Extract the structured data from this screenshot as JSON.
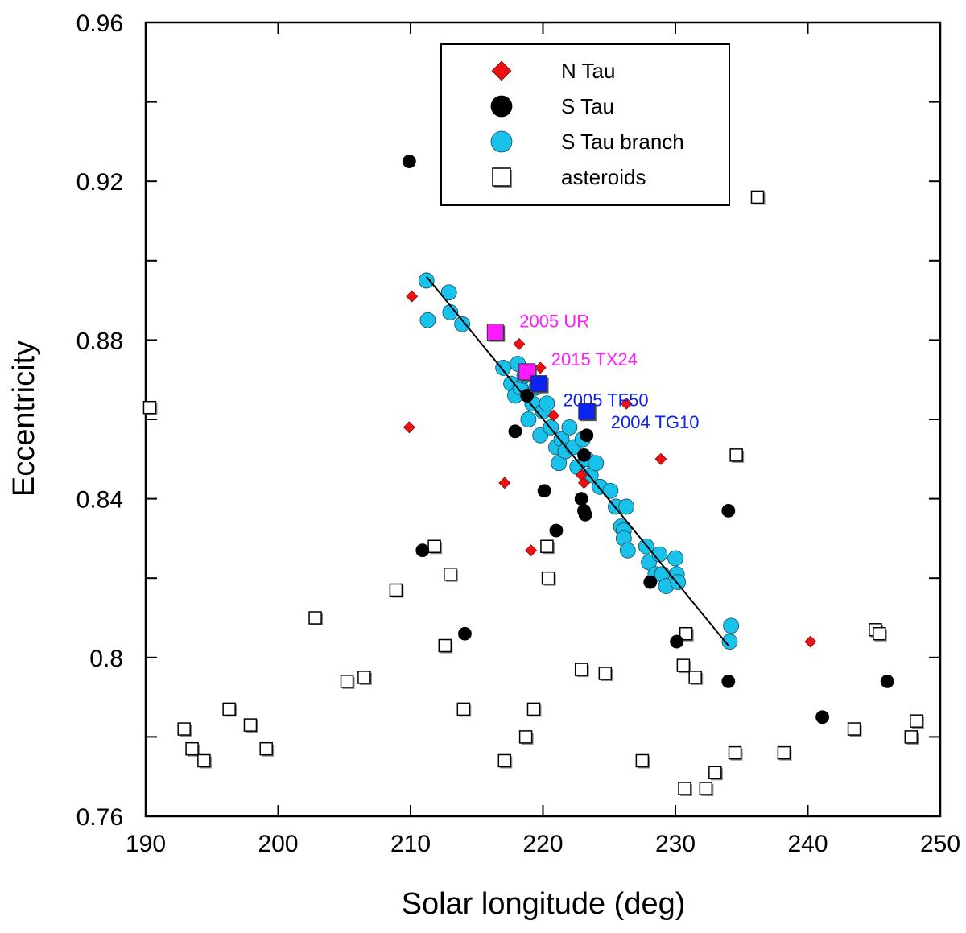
{
  "chart_data": {
    "type": "scatter",
    "xlabel": "Solar longitude (deg)",
    "ylabel": "Eccentricity",
    "xlim": [
      190,
      250
    ],
    "ylim": [
      0.76,
      0.96
    ],
    "x_major_ticks": [
      190,
      200,
      210,
      220,
      230,
      240,
      250
    ],
    "x_tick_labels": [
      "190",
      "200",
      "210",
      "220",
      "230",
      "240",
      "250"
    ],
    "y_major_ticks": [
      0.76,
      0.8,
      0.84,
      0.88,
      0.92,
      0.96
    ],
    "y_tick_labels": [
      "0.76",
      "0.8",
      "0.84",
      "0.88",
      "0.92",
      "0.96"
    ],
    "y_minor_ticks": [
      0.78,
      0.82,
      0.86,
      0.9,
      0.94
    ],
    "legend_position": "top-center",
    "legend": [
      {
        "label": "N Tau",
        "marker": "diamond",
        "color": "#ee1111"
      },
      {
        "label": "S Tau",
        "marker": "circle",
        "color": "#000000"
      },
      {
        "label": "S Tau branch",
        "marker": "circle",
        "color": "#18c2ea"
      },
      {
        "label": "asteroids",
        "marker": "square-open",
        "color": "#000000"
      }
    ],
    "series": [
      {
        "name": "N Tau",
        "marker": "diamond",
        "color": "#ee1111",
        "points": [
          [
            210.1,
            0.891
          ],
          [
            209.9,
            0.858
          ],
          [
            217.1,
            0.844
          ],
          [
            219.1,
            0.827
          ],
          [
            218.2,
            0.879
          ],
          [
            219.8,
            0.873
          ],
          [
            220.8,
            0.861
          ],
          [
            222.9,
            0.846
          ],
          [
            223.1,
            0.844
          ],
          [
            226.3,
            0.864
          ],
          [
            228.9,
            0.85
          ],
          [
            240.2,
            0.804
          ]
        ]
      },
      {
        "name": "S Tau",
        "marker": "circle",
        "color": "#000000",
        "points": [
          [
            209.9,
            0.925
          ],
          [
            210.9,
            0.827
          ],
          [
            214.1,
            0.806
          ],
          [
            217.9,
            0.857
          ],
          [
            218.8,
            0.866
          ],
          [
            220.1,
            0.842
          ],
          [
            221.0,
            0.832
          ],
          [
            222.9,
            0.84
          ],
          [
            223.1,
            0.837
          ],
          [
            223.2,
            0.836
          ],
          [
            223.1,
            0.851
          ],
          [
            223.3,
            0.856
          ],
          [
            228.1,
            0.819
          ],
          [
            230.1,
            0.804
          ],
          [
            234.0,
            0.837
          ],
          [
            234.0,
            0.794
          ],
          [
            241.1,
            0.785
          ],
          [
            246.0,
            0.794
          ]
        ]
      },
      {
        "name": "S Tau branch",
        "marker": "circle",
        "color": "#18c2ea",
        "points": [
          [
            211.2,
            0.895
          ],
          [
            211.3,
            0.885
          ],
          [
            212.9,
            0.892
          ],
          [
            213.0,
            0.887
          ],
          [
            213.9,
            0.884
          ],
          [
            217.0,
            0.873
          ],
          [
            217.6,
            0.869
          ],
          [
            217.9,
            0.866
          ],
          [
            218.1,
            0.874
          ],
          [
            218.3,
            0.868
          ],
          [
            218.6,
            0.871
          ],
          [
            218.9,
            0.86
          ],
          [
            219.2,
            0.864
          ],
          [
            219.5,
            0.868
          ],
          [
            219.8,
            0.856
          ],
          [
            220.0,
            0.862
          ],
          [
            220.3,
            0.864
          ],
          [
            220.6,
            0.858
          ],
          [
            221.0,
            0.853
          ],
          [
            221.2,
            0.849
          ],
          [
            221.4,
            0.855
          ],
          [
            221.7,
            0.852
          ],
          [
            222.0,
            0.858
          ],
          [
            222.3,
            0.853
          ],
          [
            222.6,
            0.848
          ],
          [
            223.0,
            0.855
          ],
          [
            223.3,
            0.85
          ],
          [
            223.6,
            0.846
          ],
          [
            224.0,
            0.849
          ],
          [
            224.3,
            0.843
          ],
          [
            225.1,
            0.842
          ],
          [
            225.5,
            0.838
          ],
          [
            225.9,
            0.833
          ],
          [
            226.1,
            0.832
          ],
          [
            226.3,
            0.838
          ],
          [
            226.1,
            0.83
          ],
          [
            226.4,
            0.827
          ],
          [
            227.8,
            0.828
          ],
          [
            228.0,
            0.824
          ],
          [
            228.5,
            0.821
          ],
          [
            228.8,
            0.826
          ],
          [
            229.0,
            0.821
          ],
          [
            229.3,
            0.818
          ],
          [
            230.0,
            0.825
          ],
          [
            230.1,
            0.821
          ],
          [
            230.2,
            0.819
          ],
          [
            234.2,
            0.808
          ],
          [
            234.1,
            0.804
          ]
        ]
      },
      {
        "name": "asteroids",
        "marker": "square-open",
        "color": "#000000",
        "points": [
          [
            190.3,
            0.863
          ],
          [
            192.9,
            0.782
          ],
          [
            193.5,
            0.777
          ],
          [
            194.4,
            0.774
          ],
          [
            196.3,
            0.787
          ],
          [
            197.9,
            0.783
          ],
          [
            199.1,
            0.777
          ],
          [
            202.8,
            0.81
          ],
          [
            205.2,
            0.794
          ],
          [
            206.5,
            0.795
          ],
          [
            208.9,
            0.817
          ],
          [
            211.8,
            0.828
          ],
          [
            212.6,
            0.803
          ],
          [
            213.0,
            0.821
          ],
          [
            214.0,
            0.787
          ],
          [
            217.1,
            0.774
          ],
          [
            218.7,
            0.78
          ],
          [
            219.3,
            0.787
          ],
          [
            220.3,
            0.828
          ],
          [
            220.4,
            0.82
          ],
          [
            222.9,
            0.797
          ],
          [
            224.7,
            0.796
          ],
          [
            227.5,
            0.774
          ],
          [
            230.6,
            0.798
          ],
          [
            230.8,
            0.806
          ],
          [
            230.7,
            0.767
          ],
          [
            231.5,
            0.795
          ],
          [
            232.3,
            0.767
          ],
          [
            233.0,
            0.771
          ],
          [
            234.5,
            0.776
          ],
          [
            234.6,
            0.851
          ],
          [
            236.2,
            0.916
          ],
          [
            238.2,
            0.776
          ],
          [
            243.5,
            0.782
          ],
          [
            245.1,
            0.807
          ],
          [
            245.4,
            0.806
          ],
          [
            247.8,
            0.78
          ],
          [
            248.2,
            0.784
          ]
        ]
      }
    ],
    "named_objects": [
      {
        "label": "2005 UR",
        "x": 216.4,
        "y": 0.882,
        "color": "#ff1aff"
      },
      {
        "label": "2015 TX24",
        "x": 218.8,
        "y": 0.872,
        "color": "#ff1aff"
      },
      {
        "label": "2005 TF50",
        "x": 219.7,
        "y": 0.869,
        "color": "#0b22f2"
      },
      {
        "label": "2004 TG10",
        "x": 223.3,
        "y": 0.862,
        "color": "#0b22f2"
      }
    ],
    "fit_line": {
      "from": [
        211.2,
        0.896
      ],
      "to": [
        234.0,
        0.803
      ],
      "color": "#000000"
    }
  }
}
